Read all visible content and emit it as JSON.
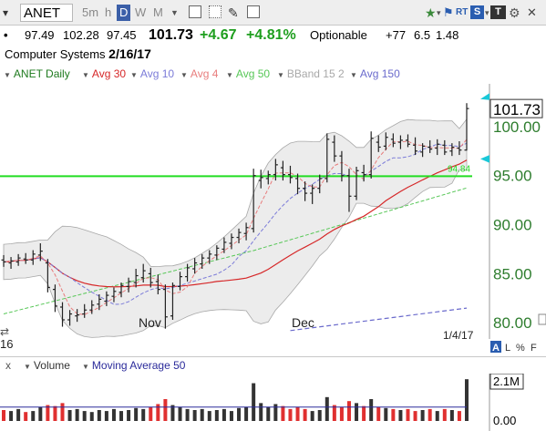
{
  "toolbar": {
    "symbol": "ANET",
    "periods": [
      {
        "label": "5m",
        "active": false
      },
      {
        "label": "h",
        "active": false
      },
      {
        "label": "D",
        "active": true
      },
      {
        "label": "W",
        "active": false
      },
      {
        "label": "M",
        "active": false
      }
    ],
    "rt_label": "RT",
    "s_label": "S",
    "tt_label": "T"
  },
  "quote": {
    "open": "97.49",
    "high": "102.28",
    "low": "97.45",
    "last": "101.73",
    "change": "+4.67",
    "change_pct": "+4.81%",
    "optionable": "Optionable",
    "rank": "+77",
    "val1": "6.5",
    "val2": "1.48"
  },
  "company": {
    "sector": "Computer Systems",
    "date": "2/16/17"
  },
  "legend": {
    "symbol_daily": "ANET Daily",
    "avg30": "Avg 30",
    "avg10": "Avg 10",
    "avg4": "Avg 4",
    "avg50": "Avg 50",
    "bband": "BBand 15 2",
    "avg150": "Avg 150"
  },
  "colors": {
    "avg30": "#d62728",
    "avg10": "#7b7bd8",
    "avg4": "#e87d7d",
    "avg50": "#57c757",
    "bband": "#a8a8a8",
    "avg150": "#6a6acc",
    "green_line": "#22dd22",
    "axis_green": "#2e7d2e",
    "vol_up": "#333333",
    "vol_down": "#e03030",
    "vol_ma": "#2b2b9b"
  },
  "price_axis": {
    "ticks": [
      "100.00",
      "95.00",
      "90.00",
      "85.00",
      "80.00"
    ],
    "current": "101.73"
  },
  "time_axis": {
    "labels": [
      "Nov",
      "Dec"
    ],
    "left_label": "16",
    "right_date": "1/4/17"
  },
  "line_label": "94.84",
  "corner_controls": {
    "a": "A",
    "l": "L",
    "pct": "%",
    "f": "F"
  },
  "volume": {
    "close_label": "x",
    "label": "Volume",
    "ma_label": "Moving Average 50",
    "ticks": [
      "2.1M",
      "0.00"
    ]
  },
  "chart_data": {
    "type": "candlestick",
    "x_labels": [
      "Nov",
      "Dec"
    ],
    "y_range": [
      78,
      104
    ],
    "horizontal_line": 94.84,
    "ohlc": [
      [
        86.3,
        86.8,
        85.6,
        86.1
      ],
      [
        86.0,
        86.6,
        85.4,
        86.2
      ],
      [
        86.1,
        86.9,
        85.7,
        86.5
      ],
      [
        86.4,
        87.0,
        85.9,
        86.3
      ],
      [
        86.3,
        87.3,
        85.8,
        86.9
      ],
      [
        86.8,
        88.0,
        86.2,
        87.2
      ],
      [
        86.0,
        86.4,
        83.0,
        83.5
      ],
      [
        83.3,
        83.8,
        81.0,
        81.6
      ],
      [
        81.5,
        82.0,
        79.5,
        80.2
      ],
      [
        80.2,
        81.2,
        79.6,
        80.8
      ],
      [
        80.6,
        81.3,
        80.0,
        80.7
      ],
      [
        80.8,
        81.8,
        80.4,
        81.2
      ],
      [
        81.2,
        82.2,
        80.8,
        81.7
      ],
      [
        81.8,
        82.8,
        81.2,
        82.3
      ],
      [
        82.1,
        83.1,
        81.6,
        82.7
      ],
      [
        82.6,
        83.5,
        82.0,
        83.1
      ],
      [
        83.0,
        84.0,
        82.5,
        83.7
      ],
      [
        83.6,
        84.5,
        83.0,
        84.1
      ],
      [
        84.0,
        85.4,
        83.5,
        84.7
      ],
      [
        84.5,
        85.9,
        84.0,
        85.2
      ],
      [
        84.9,
        85.5,
        83.5,
        84.0
      ],
      [
        84.1,
        84.8,
        82.8,
        83.3
      ],
      [
        83.3,
        83.8,
        79.3,
        80.5
      ],
      [
        80.6,
        84.0,
        80.2,
        83.7
      ],
      [
        83.6,
        85.1,
        83.2,
        84.6
      ],
      [
        84.6,
        85.9,
        84.1,
        85.5
      ],
      [
        85.4,
        86.5,
        84.9,
        86.0
      ],
      [
        85.9,
        86.9,
        85.4,
        86.5
      ],
      [
        86.5,
        87.3,
        85.9,
        86.9
      ],
      [
        86.8,
        87.8,
        86.3,
        87.5
      ],
      [
        87.4,
        88.6,
        87.0,
        88.1
      ],
      [
        88.0,
        89.0,
        87.4,
        88.6
      ],
      [
        88.6,
        89.5,
        88.0,
        89.1
      ],
      [
        89.0,
        90.1,
        88.3,
        89.6
      ],
      [
        89.5,
        95.6,
        89.1,
        94.9
      ],
      [
        94.4,
        95.5,
        93.6,
        94.7
      ],
      [
        94.6,
        95.4,
        94.0,
        95.0
      ],
      [
        95.0,
        96.6,
        94.4,
        96.0
      ],
      [
        95.7,
        96.4,
        94.4,
        95.0
      ],
      [
        95.0,
        95.9,
        94.1,
        94.7
      ],
      [
        94.6,
        95.1,
        93.0,
        93.6
      ],
      [
        93.6,
        94.3,
        92.3,
        93.1
      ],
      [
        93.1,
        94.0,
        92.0,
        93.6
      ],
      [
        93.6,
        95.0,
        93.1,
        94.6
      ],
      [
        94.6,
        99.2,
        94.2,
        98.6
      ],
      [
        98.3,
        99.0,
        96.3,
        96.9
      ],
      [
        96.9,
        97.4,
        94.3,
        94.9
      ],
      [
        94.9,
        95.6,
        91.2,
        92.8
      ],
      [
        92.8,
        95.8,
        92.4,
        95.4
      ],
      [
        95.2,
        96.0,
        94.3,
        95.0
      ],
      [
        95.0,
        99.4,
        94.6,
        98.7
      ],
      [
        98.3,
        99.0,
        97.3,
        97.8
      ],
      [
        97.9,
        99.3,
        97.5,
        98.8
      ],
      [
        98.6,
        99.2,
        97.8,
        98.2
      ],
      [
        98.3,
        99.0,
        97.6,
        98.5
      ],
      [
        98.5,
        99.1,
        97.8,
        98.1
      ],
      [
        98.0,
        98.8,
        97.0,
        97.4
      ],
      [
        97.3,
        98.2,
        96.8,
        97.9
      ],
      [
        97.8,
        98.5,
        97.2,
        97.6
      ],
      [
        97.7,
        98.6,
        97.0,
        98.1
      ],
      [
        98.0,
        98.5,
        97.0,
        97.3
      ],
      [
        97.4,
        98.2,
        96.9,
        97.8
      ],
      [
        97.7,
        98.4,
        97.0,
        97.5
      ],
      [
        97.5,
        102.28,
        97.45,
        101.73
      ]
    ],
    "volume": [
      0.55,
      0.5,
      0.6,
      0.45,
      0.5,
      0.7,
      0.8,
      0.75,
      0.9,
      0.55,
      0.6,
      0.5,
      0.45,
      0.55,
      0.5,
      0.6,
      0.5,
      0.55,
      0.65,
      0.6,
      0.7,
      0.85,
      1.1,
      0.8,
      0.7,
      0.6,
      0.55,
      0.6,
      0.5,
      0.55,
      0.6,
      0.5,
      0.65,
      0.7,
      1.9,
      0.9,
      0.7,
      0.85,
      0.75,
      0.6,
      0.7,
      0.6,
      0.5,
      0.55,
      1.2,
      0.8,
      0.7,
      1.0,
      0.9,
      0.75,
      1.1,
      0.7,
      0.65,
      0.6,
      0.55,
      0.6,
      0.5,
      0.55,
      0.6,
      0.5,
      0.6,
      0.55,
      0.5,
      2.1
    ],
    "volume_ma": 0.7
  }
}
